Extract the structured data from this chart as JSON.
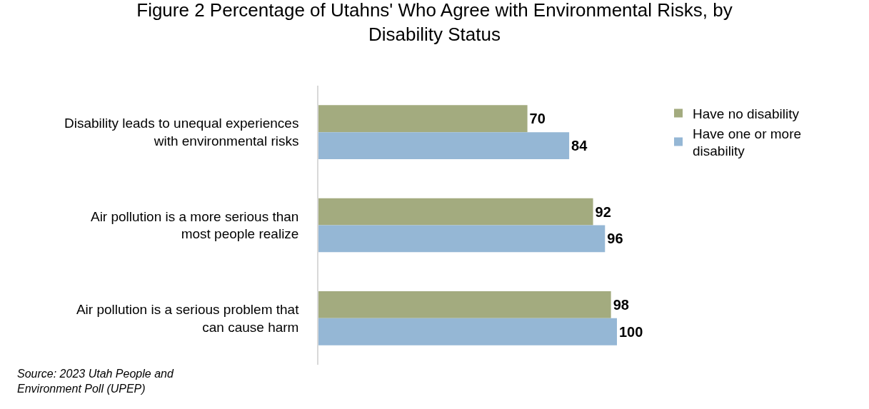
{
  "chart_data": {
    "type": "bar",
    "orientation": "horizontal",
    "title": "Figure 2 Percentage of Utahns' Who Agree with Environmental Risks, by Disability Status",
    "categories": [
      "Disability leads to unequal experiences with environmental risks",
      "Air pollution is a more serious than most people realize",
      "Air pollution is a serious problem that can cause harm"
    ],
    "series": [
      {
        "name": "Have no disability",
        "color": "#a3ab7f",
        "values": [
          70,
          92,
          98
        ]
      },
      {
        "name": "Have one or more disability",
        "color": "#95b7d5",
        "values": [
          84,
          96,
          100
        ]
      }
    ],
    "data_labels": true,
    "legend": "right",
    "grid": false,
    "annotations": [
      "Source: 2023 Utah People and Environment Poll (UPEP)"
    ]
  }
}
